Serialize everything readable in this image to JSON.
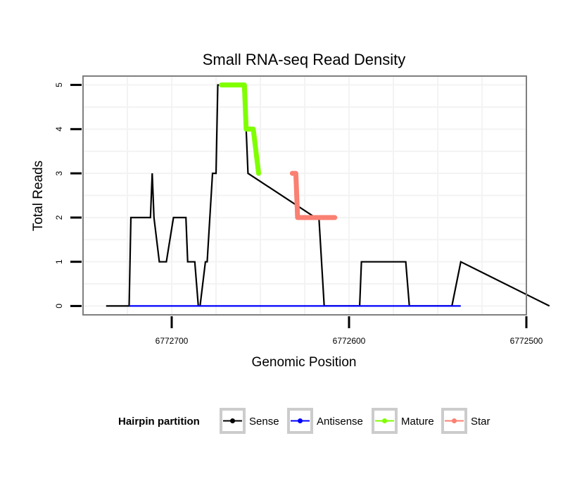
{
  "chart_data": {
    "type": "line",
    "title": "Small RNA-seq Read Density",
    "xlabel": "Genomic Position",
    "ylabel": "Total Reads",
    "x_reversed": true,
    "xlim": [
      6772500,
      6772750
    ],
    "ylim": [
      -0.2,
      5.2
    ],
    "x_ticks": [
      6772700,
      6772600,
      6772500
    ],
    "x_tick_labels": [
      "6772700",
      "6772600",
      "6772500"
    ],
    "y_ticks": [
      0,
      1,
      2,
      3,
      4,
      5
    ],
    "y_tick_labels": [
      "0",
      "1",
      "2",
      "3",
      "4",
      "5"
    ],
    "grid": true,
    "legend": {
      "title": "Hairpin partition",
      "position": "bottom",
      "entries": [
        "Sense",
        "Antisense",
        "Mature",
        "Star"
      ]
    },
    "series": [
      {
        "name": "Sense",
        "color": "#000000",
        "x": [
          6772737,
          6772724,
          6772723,
          6772719,
          6772712,
          6772711,
          6772710,
          6772707,
          6772703,
          6772699,
          6772698,
          6772696,
          6772692,
          6772691,
          6772687,
          6772685,
          6772684,
          6772681,
          6772680,
          6772677,
          6772675,
          6772674,
          6772672,
          6772660,
          6772658,
          6772657,
          6772619,
          6772617,
          6772614,
          6772594,
          6772593,
          6772568,
          6772566,
          6772542,
          6772537,
          6772487
        ],
        "y": [
          0,
          0,
          2,
          2,
          2,
          3,
          2,
          1,
          1,
          2,
          2,
          2,
          2,
          1,
          1,
          0,
          0,
          1,
          1,
          3,
          3,
          5,
          5,
          5,
          4,
          3,
          2,
          2,
          0,
          0,
          1,
          1,
          0,
          0,
          1,
          0
        ]
      },
      {
        "name": "Antisense",
        "color": "#0000ff",
        "x": [
          6772724,
          6772537
        ],
        "y": [
          0,
          0
        ]
      },
      {
        "name": "Mature",
        "color": "#7fff00",
        "x": [
          6772672,
          6772659,
          6772658,
          6772654,
          6772651
        ],
        "y": [
          5,
          5,
          4,
          4,
          3
        ]
      },
      {
        "name": "Star",
        "color": "#fa8072",
        "x": [
          6772632,
          6772630,
          6772629,
          6772608
        ],
        "y": [
          3,
          3,
          2,
          2
        ]
      }
    ]
  }
}
